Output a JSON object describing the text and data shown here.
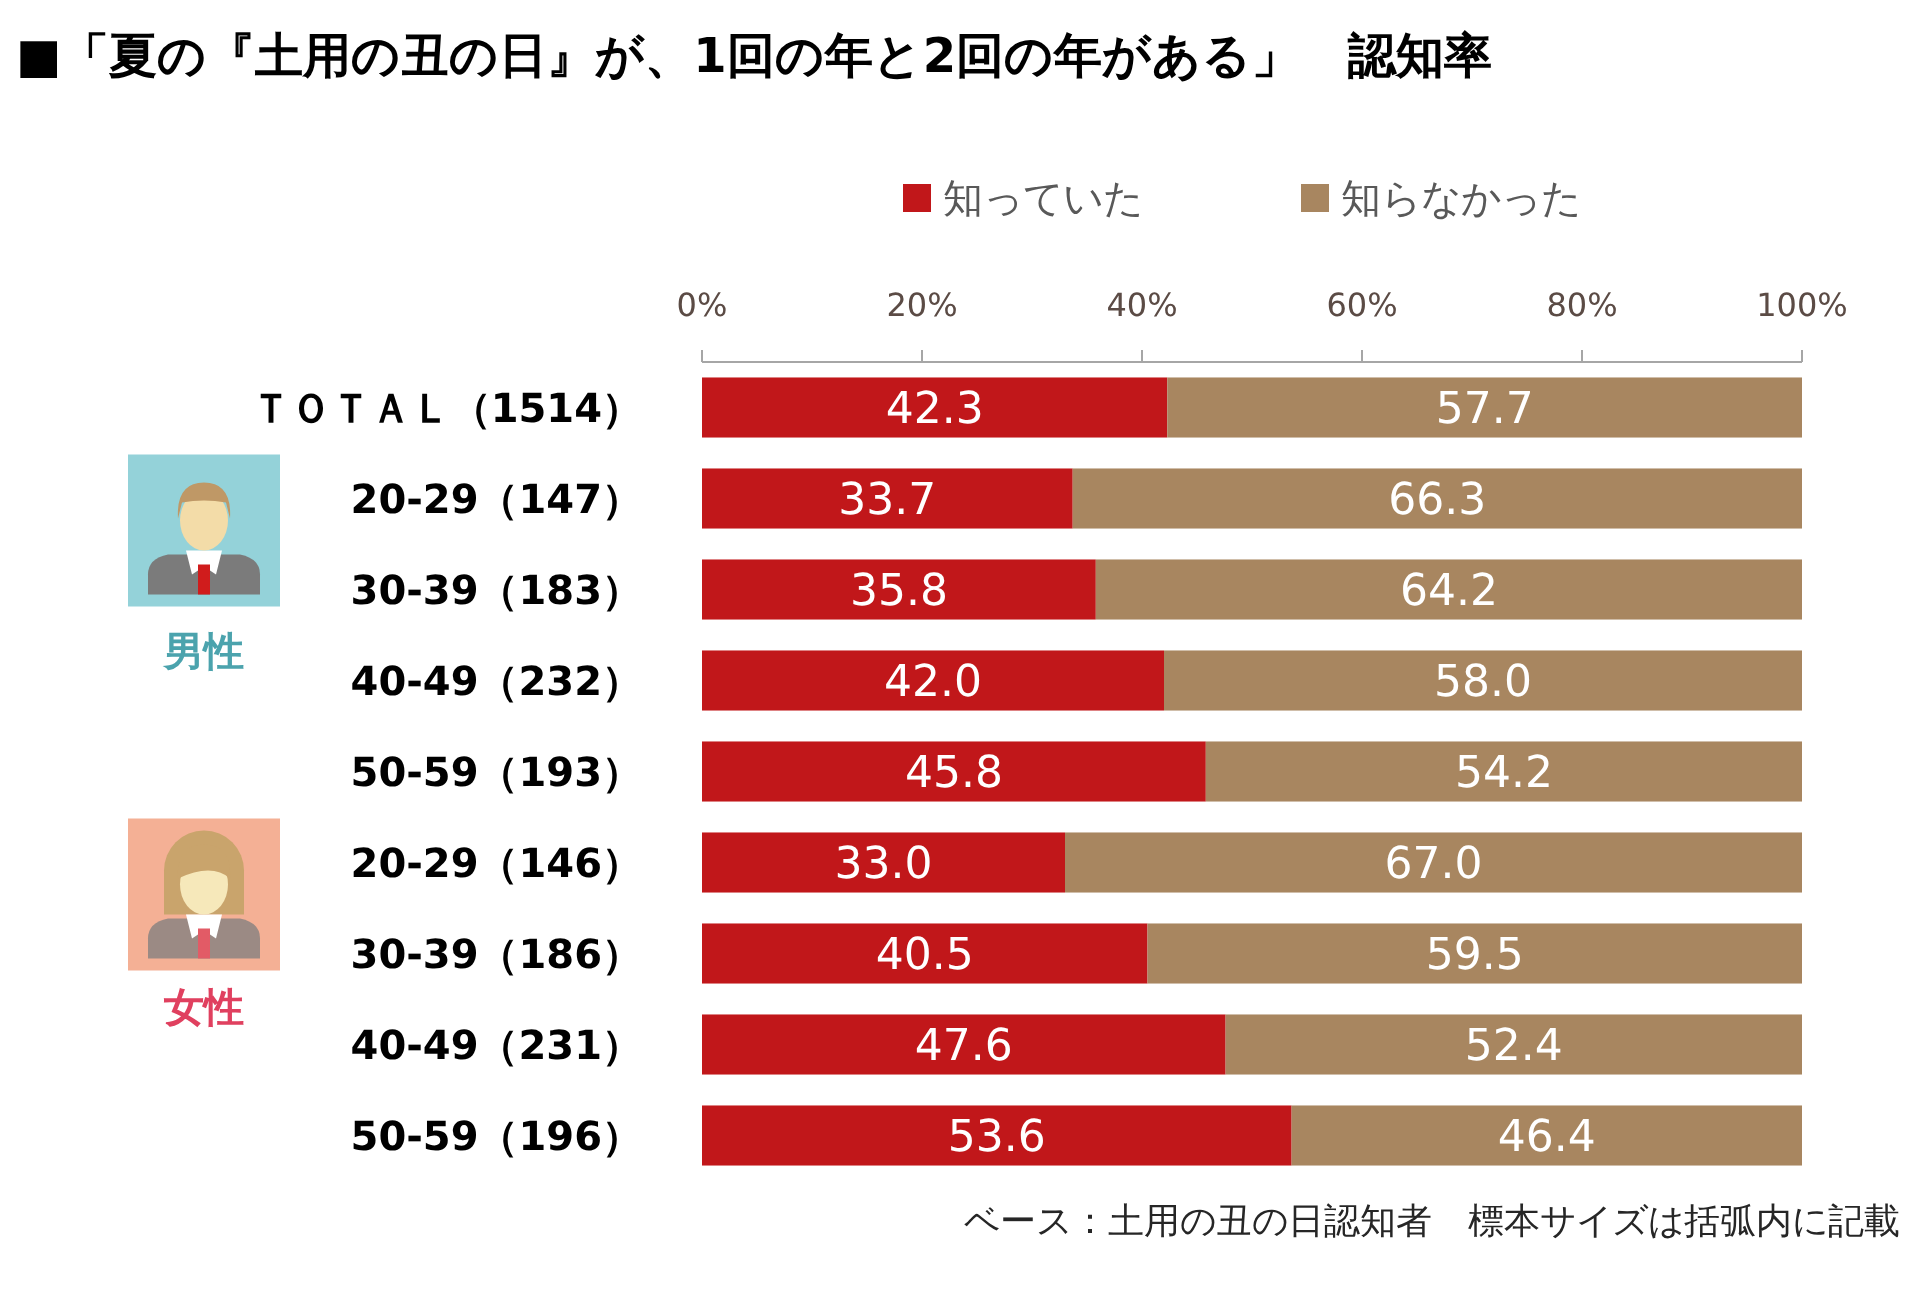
{
  "chart_data": {
    "type": "bar",
    "orientation": "horizontal",
    "stacked": true,
    "title": "■「夏の『土用の丑の日』が、1回の年と2回の年がある」　認知率",
    "categories": [
      "ＴＯＴＡＬ（1514）",
      "20-29（147）",
      "30-39（183）",
      "40-49（232）",
      "50-59（193）",
      "20-29（146）",
      "30-39（186）",
      "40-49（231）",
      "50-59（196）"
    ],
    "series": [
      {
        "name": "知っていた",
        "color": "#c1171a",
        "values": [
          42.3,
          33.7,
          35.8,
          42.0,
          45.8,
          33.0,
          40.5,
          47.6,
          53.6
        ],
        "value_labels": [
          "42.3",
          "33.7",
          "35.8",
          "42.0",
          "45.8",
          "33.0",
          "40.5",
          "47.6",
          "53.6"
        ]
      },
      {
        "name": "知らなかった",
        "color": "#a88660",
        "values": [
          57.7,
          66.3,
          64.2,
          58.0,
          54.2,
          67.0,
          59.5,
          52.4,
          46.4
        ],
        "value_labels": [
          "57.7",
          "66.3",
          "64.2",
          "58.0",
          "54.2",
          "67.0",
          "59.5",
          "52.4",
          "46.4"
        ]
      }
    ],
    "xlim": [
      0,
      100
    ],
    "xticks": [
      {
        "value": 0,
        "label": "0%"
      },
      {
        "value": 20,
        "label": "20%"
      },
      {
        "value": 40,
        "label": "40%"
      },
      {
        "value": 60,
        "label": "60%"
      },
      {
        "value": 80,
        "label": "80%"
      },
      {
        "value": 100,
        "label": "100%"
      }
    ],
    "legend": "top",
    "annotations": [
      "男性",
      "女性",
      "ベース：土用の丑の日認知者　標本サイズは括弧内に記載"
    ]
  }
}
